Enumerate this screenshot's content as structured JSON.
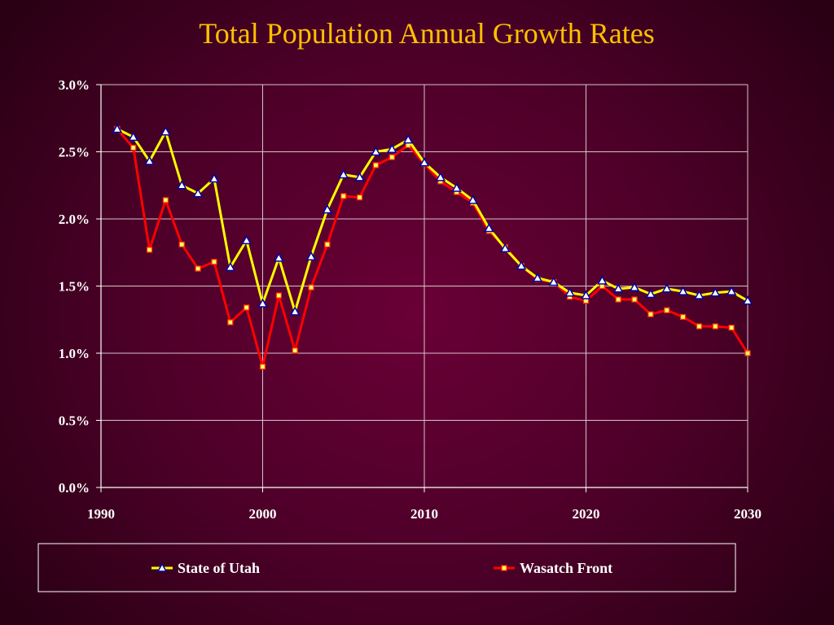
{
  "chart_data": {
    "type": "line",
    "title": "Total Population Annual Growth Rates",
    "xlabel": "",
    "ylabel": "",
    "xlim": [
      1990,
      2030
    ],
    "ylim": [
      0,
      3.0
    ],
    "x_ticks": [
      "1990",
      "2000",
      "2010",
      "2020",
      "2030"
    ],
    "y_ticks": [
      "0.0%",
      "0.5%",
      "1.0%",
      "1.5%",
      "2.0%",
      "2.5%",
      "3.0%"
    ],
    "grid": true,
    "legend_position": "bottom",
    "x": [
      1991,
      1992,
      1993,
      1994,
      1995,
      1996,
      1997,
      1998,
      1999,
      2000,
      2001,
      2002,
      2003,
      2004,
      2005,
      2006,
      2007,
      2008,
      2009,
      2010,
      2011,
      2012,
      2013,
      2014,
      2015,
      2016,
      2017,
      2018,
      2019,
      2020,
      2021,
      2022,
      2023,
      2024,
      2025,
      2026,
      2027,
      2028,
      2029,
      2030
    ],
    "series": [
      {
        "name": "State of Utah",
        "color": "#ffff00",
        "marker": "triangle",
        "values": [
          2.67,
          2.61,
          2.43,
          2.65,
          2.25,
          2.19,
          2.3,
          1.64,
          1.84,
          1.37,
          1.71,
          1.31,
          1.72,
          2.07,
          2.33,
          2.31,
          2.5,
          2.52,
          2.59,
          2.42,
          2.31,
          2.23,
          2.14,
          1.93,
          1.78,
          1.65,
          1.56,
          1.53,
          1.45,
          1.43,
          1.54,
          1.48,
          1.49,
          1.44,
          1.48,
          1.46,
          1.43,
          1.45,
          1.46,
          1.39
        ]
      },
      {
        "name": "Wasatch Front",
        "color": "#ff0000",
        "marker": "square",
        "values": [
          2.67,
          2.53,
          1.77,
          2.14,
          1.81,
          1.63,
          1.68,
          1.23,
          1.34,
          0.9,
          1.43,
          1.02,
          1.49,
          1.81,
          2.17,
          2.16,
          2.4,
          2.46,
          2.55,
          2.41,
          2.28,
          2.2,
          2.12,
          1.91,
          1.79,
          1.65,
          1.55,
          1.53,
          1.42,
          1.39,
          1.5,
          1.4,
          1.4,
          1.29,
          1.32,
          1.27,
          1.2,
          1.2,
          1.19,
          1.0
        ]
      }
    ]
  }
}
